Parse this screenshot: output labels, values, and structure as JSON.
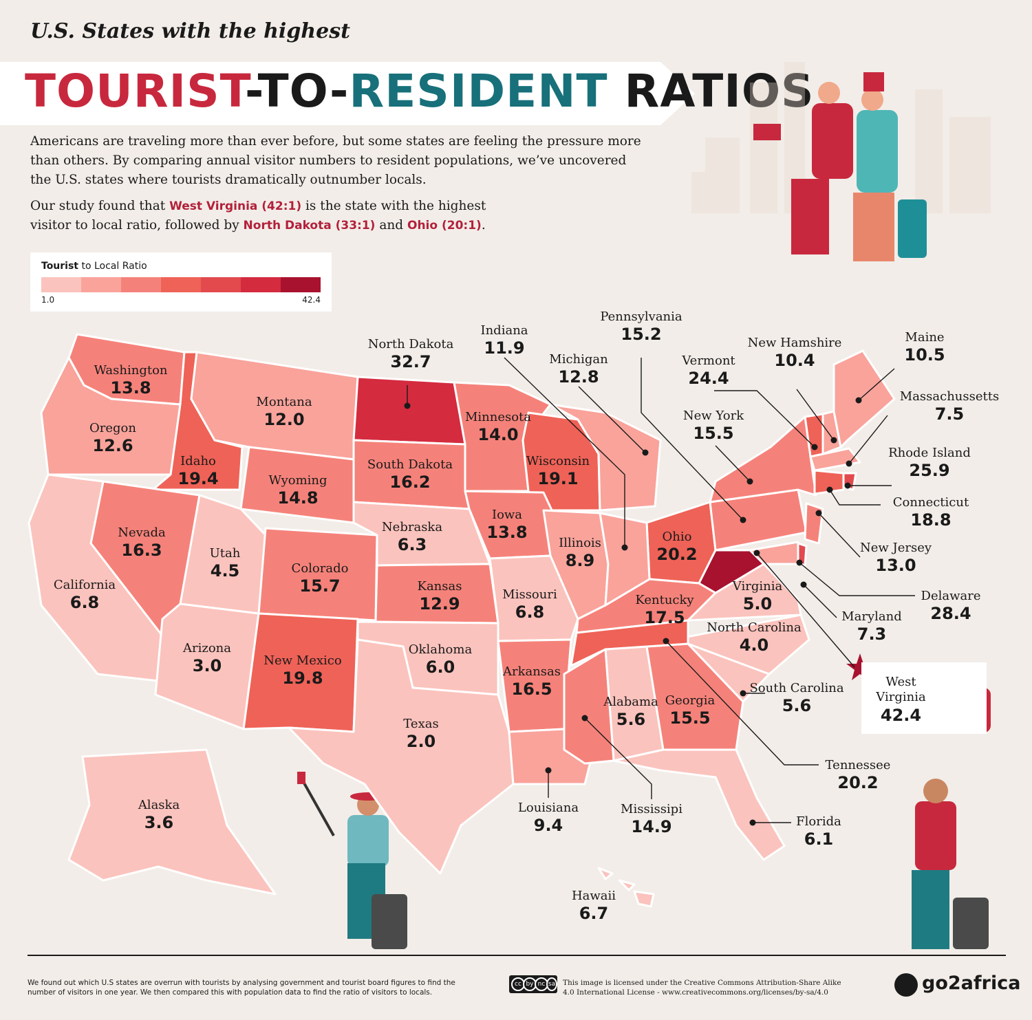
{
  "header": {
    "kicker": "U.S. States with the highest",
    "title_part1": "TOURIST",
    "title_part2": "-TO-",
    "title_part3": "RESIDENT",
    "title_part4": " RATIOS"
  },
  "intro": {
    "paragraph1": "Americans are traveling more than ever before, but some states are feeling the pressure more than others. By comparing annual visitor numbers to resident populations, we’ve uncovered the U.S. states where tourists dramatically outnumber locals.",
    "p2_a": "Our study found that ",
    "p2_hl1": "West Virginia (42:1)",
    "p2_b": " is the state with the highest visitor to local ratio, followed by ",
    "p2_hl2": "North Dakota (33:1)",
    "p2_c": " and ",
    "p2_hl3": "Ohio (20:1)",
    "p2_d": "."
  },
  "legend": {
    "title_bold": "Tourist",
    "title_rest": " to Local Ratio",
    "min": "1.0",
    "max": "42.4",
    "colors": [
      "#fbc3bd",
      "#f9a39b",
      "#f5827a",
      "#ef6257",
      "#e24a4e",
      "#d42b3f",
      "#a8122f"
    ]
  },
  "states": [
    {
      "name": "Washington",
      "value": "13.8"
    },
    {
      "name": "Oregon",
      "value": "12.6"
    },
    {
      "name": "Idaho",
      "value": "19.4"
    },
    {
      "name": "Montana",
      "value": "12.0"
    },
    {
      "name": "North Dakota",
      "value": "32.7"
    },
    {
      "name": "Minnesota",
      "value": "14.0"
    },
    {
      "name": "Wisconsin",
      "value": "19.1"
    },
    {
      "name": "South Dakota",
      "value": "16.2"
    },
    {
      "name": "Wyoming",
      "value": "14.8"
    },
    {
      "name": "Nevada",
      "value": "16.3"
    },
    {
      "name": "Utah",
      "value": "4.5"
    },
    {
      "name": "California",
      "value": "6.8"
    },
    {
      "name": "Colorado",
      "value": "15.7"
    },
    {
      "name": "Nebraska",
      "value": "6.3"
    },
    {
      "name": "Iowa",
      "value": "13.8"
    },
    {
      "name": "Illinois",
      "value": "8.9"
    },
    {
      "name": "Ohio",
      "value": "20.2"
    },
    {
      "name": "Kansas",
      "value": "12.9"
    },
    {
      "name": "Missouri",
      "value": "6.8"
    },
    {
      "name": "Kentucky",
      "value": "17.5"
    },
    {
      "name": "Virginia",
      "value": "5.0"
    },
    {
      "name": "North Carolina",
      "value": "4.0"
    },
    {
      "name": "Arizona",
      "value": "3.0"
    },
    {
      "name": "New Mexico",
      "value": "19.8"
    },
    {
      "name": "Oklahoma",
      "value": "6.0"
    },
    {
      "name": "Arkansas",
      "value": "16.5"
    },
    {
      "name": "Alabama",
      "value": "5.6"
    },
    {
      "name": "Georgia",
      "value": "15.5"
    },
    {
      "name": "Texas",
      "value": "2.0"
    },
    {
      "name": "Alaska",
      "value": "3.6"
    },
    {
      "name": "Hawaii",
      "value": "6.7"
    },
    {
      "name": "Indiana",
      "value": "11.9"
    },
    {
      "name": "Pennsylvania",
      "value": "15.2"
    },
    {
      "name": "Michigan",
      "value": "12.8"
    },
    {
      "name": "Vermont",
      "value": "24.4"
    },
    {
      "name": "New York",
      "value": "15.5"
    },
    {
      "name": "New Hamshire",
      "value": "10.4"
    },
    {
      "name": "Maine",
      "value": "10.5"
    },
    {
      "name": "Massachussetts",
      "value": "7.5"
    },
    {
      "name": "Rhode Island",
      "value": "25.9"
    },
    {
      "name": "Connecticut",
      "value": "18.8"
    },
    {
      "name": "New Jersey",
      "value": "13.0"
    },
    {
      "name": "Delaware",
      "value": "28.4"
    },
    {
      "name": "Maryland",
      "value": "7.3"
    },
    {
      "name": "South Carolina",
      "value": "5.6"
    },
    {
      "name": "Tennessee",
      "value": "20.2"
    },
    {
      "name": "Louisiana",
      "value": "9.4"
    },
    {
      "name": "Mississipi",
      "value": "14.9"
    },
    {
      "name": "Florida",
      "value": "6.1"
    }
  ],
  "highlight": {
    "name_line1": "West",
    "name_line2": "Virginia",
    "value": "42.4"
  },
  "footer": {
    "methodology": "We found out which U.S states are overrun with tourists by analysing government and tourist board figures to find the number of visitors in one year. We then compared this with population data to find the ratio of visitors to locals.",
    "license": "This image is licensed under the Creative Commons Attribution-Share Alike 4.0 International License - www.creativecommons.org/licenses/by-sa/4.0",
    "cc_badges": [
      "cc",
      "by",
      "nc",
      "sa"
    ],
    "brand": "go2africa"
  }
}
